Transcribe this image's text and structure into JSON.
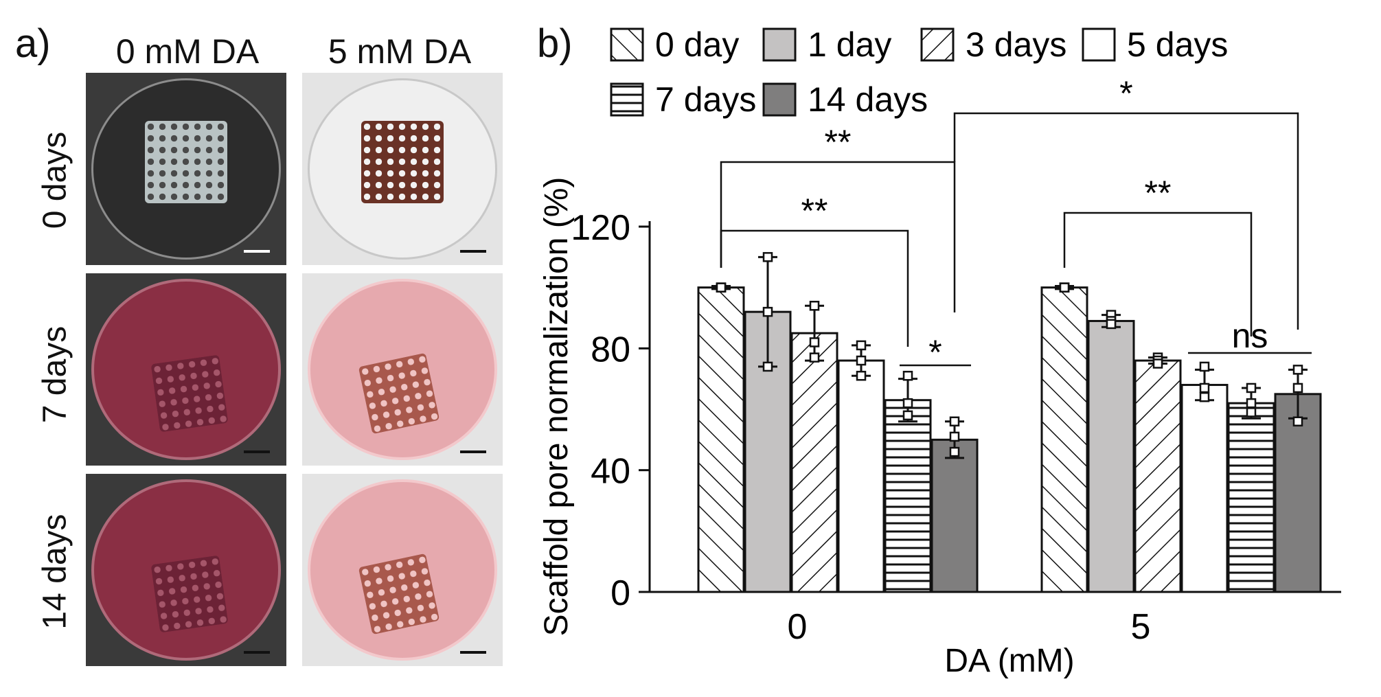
{
  "panel_a": {
    "label": "a)",
    "columns": [
      "0 mM DA",
      "5 mM DA"
    ],
    "rows": [
      "0 days",
      "7 days",
      "14 days"
    ],
    "colors": {
      "dark_bg": "#3a3a3a",
      "light_bg": "#e4e4e4",
      "medium_dark": "#8a2f44",
      "medium_light": "#e6a9ae",
      "scaffold_clear": "#b9c3c4",
      "scaffold_brown": "#6a3226",
      "scaffold_tan": "#a8584c"
    }
  },
  "panel_b": {
    "label": "b)"
  },
  "chart_data": {
    "type": "bar",
    "title": "",
    "xlabel": "DA (mM)",
    "ylabel": "Scaffold pore normalization (%)",
    "ylim": [
      0,
      120
    ],
    "yticks": [
      0,
      40,
      80,
      120
    ],
    "categories": [
      "0",
      "5"
    ],
    "series": [
      {
        "name": "0 day",
        "pattern": "diag-up",
        "values": [
          100,
          100
        ],
        "err": [
          0.5,
          0.5
        ],
        "points": [
          [
            100,
            100,
            100
          ],
          [
            100,
            100,
            100
          ]
        ]
      },
      {
        "name": "1 day",
        "pattern": "light-gray",
        "values": [
          92,
          89
        ],
        "err": [
          18,
          2
        ],
        "points": [
          [
            110,
            92,
            74
          ],
          [
            91,
            89,
            88
          ]
        ]
      },
      {
        "name": "3 days",
        "pattern": "diag-down",
        "values": [
          85,
          76
        ],
        "err": [
          9,
          1
        ],
        "points": [
          [
            94,
            82,
            77
          ],
          [
            77,
            76,
            75
          ]
        ]
      },
      {
        "name": "5 days",
        "pattern": "white",
        "values": [
          76,
          68
        ],
        "err": [
          5,
          5
        ],
        "points": [
          [
            81,
            76,
            71
          ],
          [
            74,
            67,
            64
          ]
        ]
      },
      {
        "name": "7 days",
        "pattern": "horizontal",
        "values": [
          63,
          62
        ],
        "err": [
          7,
          5
        ],
        "points": [
          [
            71,
            62,
            58
          ],
          [
            67,
            62,
            59
          ]
        ]
      },
      {
        "name": "14 days",
        "pattern": "dark-gray",
        "values": [
          50,
          65
        ],
        "err": [
          6,
          8
        ],
        "points": [
          [
            56,
            51,
            46
          ],
          [
            73,
            67,
            56
          ]
        ]
      }
    ],
    "significance": [
      {
        "label": "**"
      },
      {
        "label": "**"
      },
      {
        "label": "*"
      },
      {
        "label": "*"
      },
      {
        "label": "**"
      },
      {
        "label": "ns"
      }
    ]
  }
}
